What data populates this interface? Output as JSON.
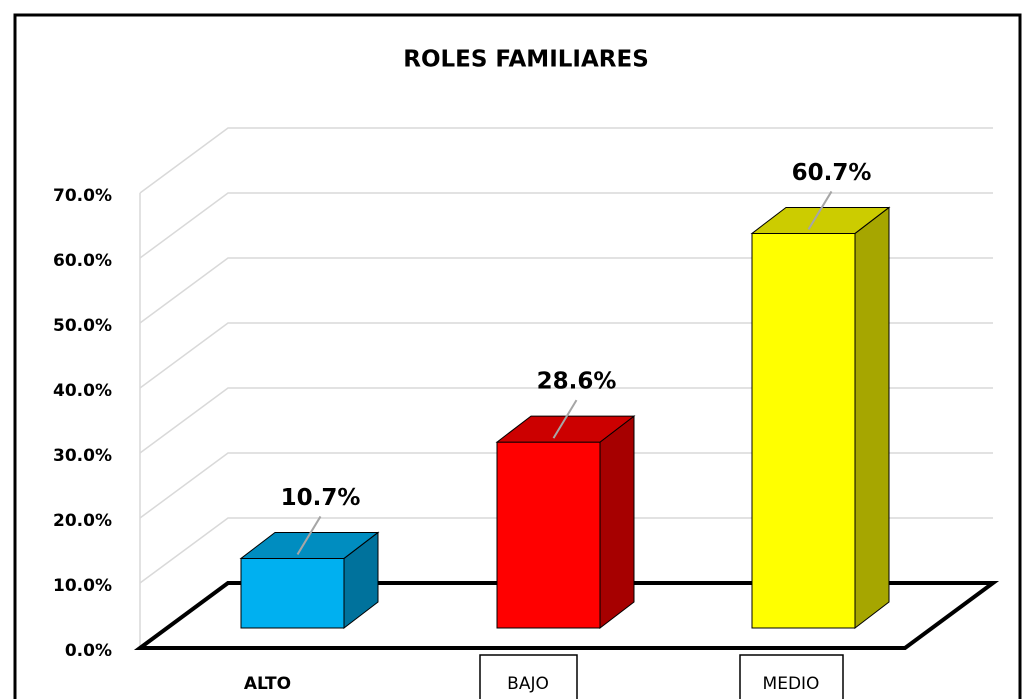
{
  "chart_data": {
    "type": "bar3d",
    "title": "ROLES FAMILIARES",
    "categories": [
      "ALTO",
      "BAJO",
      "MEDIO"
    ],
    "values": [
      10.7,
      28.6,
      60.7
    ],
    "value_labels": [
      "10.7%",
      "28.6%",
      "60.7%"
    ],
    "colors": [
      "#00b0f0",
      "#ff0000",
      "#ffff00"
    ],
    "ylim": [
      0,
      70
    ],
    "yticks": [
      {
        "value": 0,
        "label": "0.0%"
      },
      {
        "value": 10,
        "label": "10.0%"
      },
      {
        "value": 20,
        "label": "20.0%"
      },
      {
        "value": 30,
        "label": "30.0%"
      },
      {
        "value": 40,
        "label": "40.0%"
      },
      {
        "value": 50,
        "label": "50.0%"
      },
      {
        "value": 60,
        "label": "60.0%"
      },
      {
        "value": 70,
        "label": "70.0%"
      }
    ],
    "grid": true
  }
}
